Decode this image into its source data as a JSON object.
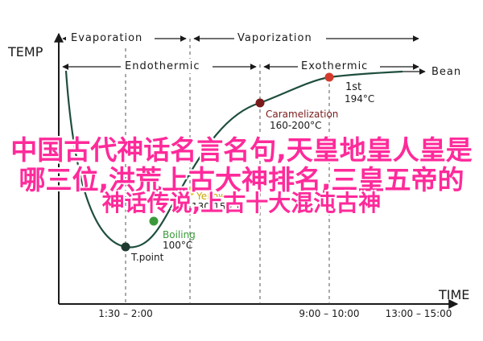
{
  "chart_data": {
    "type": "line",
    "ylabel": "TEMP",
    "xlabel": "TIME",
    "x_ticks": [
      "1:30 – 2:00",
      "9:00 – 10:00",
      "13:00 – 15:00"
    ],
    "phases_top": [
      "Evaporation",
      "Vaporization"
    ],
    "phases_mid": [
      "Endothermic",
      "Exothermic"
    ],
    "end_label": "Bean",
    "points": [
      {
        "name": "T.point",
        "detail": "",
        "color": "#1f3a2e"
      },
      {
        "name": "Boiling",
        "detail": "100°C",
        "color": "#3a9a3a"
      },
      {
        "name": "Yellow",
        "detail": "130-150°C",
        "color": "#e6c21a"
      },
      {
        "name": "Caramelization",
        "detail": "160-200°C",
        "color": "#7a1a1a"
      },
      {
        "name": "1st",
        "detail": "194°C",
        "color": "#d43b2c"
      }
    ],
    "point_label_prefixes": [
      "T",
      "B",
      "Y",
      "C",
      "1"
    ],
    "colors": {
      "axis": "#1a1a1a",
      "curve": "#1f4e3d",
      "guide": "#555555"
    }
  },
  "overlay": {
    "line1": "中国古代神话名言名句,天皇地皇人皇是",
    "line2": "哪三位,洪荒上古大神排名,三皇五帝的",
    "line3": "神话传说,上古十大混沌古神"
  }
}
